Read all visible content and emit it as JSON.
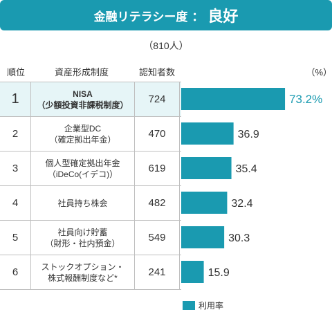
{
  "header": {
    "title_main": "金融リテラシー度",
    "title_colon": "：",
    "title_result": "良好",
    "subtitle": "（810人）"
  },
  "columns": {
    "rank": "順位",
    "asset": "資産形成制度",
    "count": "認知者数",
    "unit": "（%）"
  },
  "rows": [
    {
      "rank": "1",
      "line1": "NISA",
      "line2": "（少額投資非課税制度）",
      "count": "724"
    },
    {
      "rank": "2",
      "line1": "企業型DC",
      "line2": "（確定拠出年金）",
      "count": "470"
    },
    {
      "rank": "3",
      "line1": "個人型確定拠出年金",
      "line2": "（iDeCo(イデコ)）",
      "count": "619"
    },
    {
      "rank": "4",
      "line1": "社員持ち株会",
      "line2": "",
      "count": "482"
    },
    {
      "rank": "5",
      "line1": "社員向け貯蓄",
      "line2": "（財形・社内預金）",
      "count": "549"
    },
    {
      "rank": "6",
      "line1": "ストックオプション・",
      "line2": "株式報酬制度など*",
      "count": "241"
    }
  ],
  "chart_data": {
    "type": "bar",
    "orientation": "horizontal",
    "categories": [
      "NISA（少額投資非課税制度）",
      "企業型DC（確定拠出年金）",
      "個人型確定拠出年金（iDeCo(イデコ)）",
      "社員持ち株会",
      "社員向け貯蓄（財形・社内預金）",
      "ストックオプション・株式報酬制度など*"
    ],
    "series": [
      {
        "name": "利用率",
        "values": [
          73.2,
          36.9,
          35.4,
          32.4,
          30.3,
          15.9
        ]
      }
    ],
    "value_labels": [
      "73.2%",
      "36.9",
      "35.4",
      "32.4",
      "30.3",
      "15.9"
    ],
    "highlight_index": 0,
    "xlim": [
      0,
      100
    ],
    "legend_position": "bottom",
    "colors": {
      "bar": "#1a9ab0",
      "highlight_label": "#1a9ab0",
      "label": "#333333"
    }
  },
  "legend": {
    "label": "利用率"
  }
}
